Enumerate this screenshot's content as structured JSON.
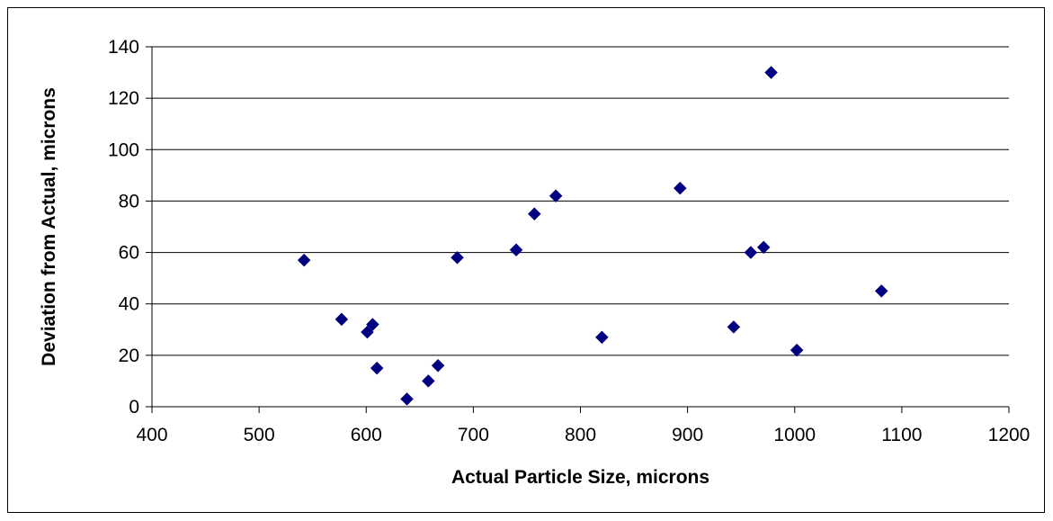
{
  "chart_data": {
    "type": "scatter",
    "xlabel": "Actual Particle Size, microns",
    "ylabel": "Deviation from Actual, microns",
    "xlim": [
      400,
      1200
    ],
    "ylim": [
      0,
      140
    ],
    "xticks": [
      "400",
      "500",
      "600",
      "700",
      "800",
      "900",
      "1000",
      "1100",
      "1200"
    ],
    "yticks": [
      "0",
      "20",
      "40",
      "60",
      "80",
      "100",
      "120",
      "140"
    ],
    "grid": "horizontal",
    "legend": "none",
    "marker": "diamond",
    "marker_color": "#000080",
    "points": [
      {
        "x": 542,
        "y": 57
      },
      {
        "x": 577,
        "y": 34
      },
      {
        "x": 601,
        "y": 29
      },
      {
        "x": 606,
        "y": 32
      },
      {
        "x": 610,
        "y": 15
      },
      {
        "x": 638,
        "y": 3
      },
      {
        "x": 658,
        "y": 10
      },
      {
        "x": 667,
        "y": 16
      },
      {
        "x": 685,
        "y": 58
      },
      {
        "x": 740,
        "y": 61
      },
      {
        "x": 757,
        "y": 75
      },
      {
        "x": 777,
        "y": 82
      },
      {
        "x": 820,
        "y": 27
      },
      {
        "x": 893,
        "y": 85
      },
      {
        "x": 943,
        "y": 31
      },
      {
        "x": 959,
        "y": 60
      },
      {
        "x": 971,
        "y": 62
      },
      {
        "x": 978,
        "y": 130
      },
      {
        "x": 1002,
        "y": 22
      },
      {
        "x": 1081,
        "y": 45
      }
    ]
  }
}
